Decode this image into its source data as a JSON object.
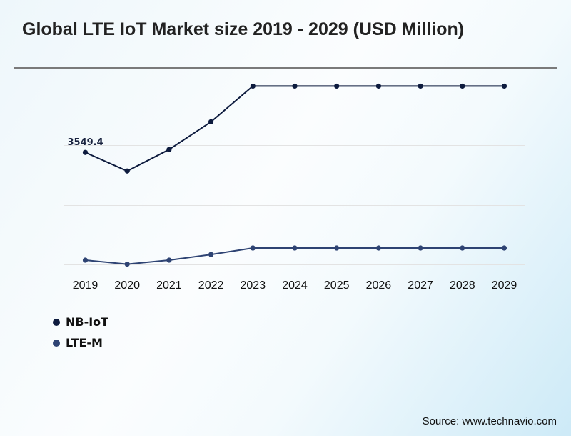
{
  "chart_data": {
    "type": "line",
    "title": "Global LTE IoT Market size 2019 - 2029 (USD Million)",
    "xlabel": "",
    "ylabel": "",
    "categories": [
      "2019",
      "2020",
      "2021",
      "2022",
      "2023",
      "2024",
      "2025",
      "2026",
      "2027",
      "2028",
      "2029"
    ],
    "series": [
      {
        "name": "NB-IoT",
        "color": "#0d1b3e",
        "values": [
          3549.4,
          2960,
          3640,
          4520,
          5650,
          5650,
          5650,
          5650,
          5650,
          5650,
          5650
        ]
      },
      {
        "name": "LTE-M",
        "color": "#2e4373",
        "values": [
          135,
          10,
          135,
          315,
          520,
          520,
          520,
          520,
          520,
          520,
          520
        ]
      }
    ],
    "annotations": [
      {
        "series": "NB-IoT",
        "category": "2019",
        "text": "3549.4"
      }
    ],
    "ylim": [
      0,
      5660
    ],
    "gridlines": [
      0,
      1887,
      3773,
      5660
    ],
    "grid": true,
    "y_tick_labels_shown": false,
    "legend_position": "bottom-left"
  },
  "source": "Source: www.technavio.com",
  "colors": {
    "gridline": "#e3e3e3",
    "title_rule": "#7a7a7a"
  }
}
